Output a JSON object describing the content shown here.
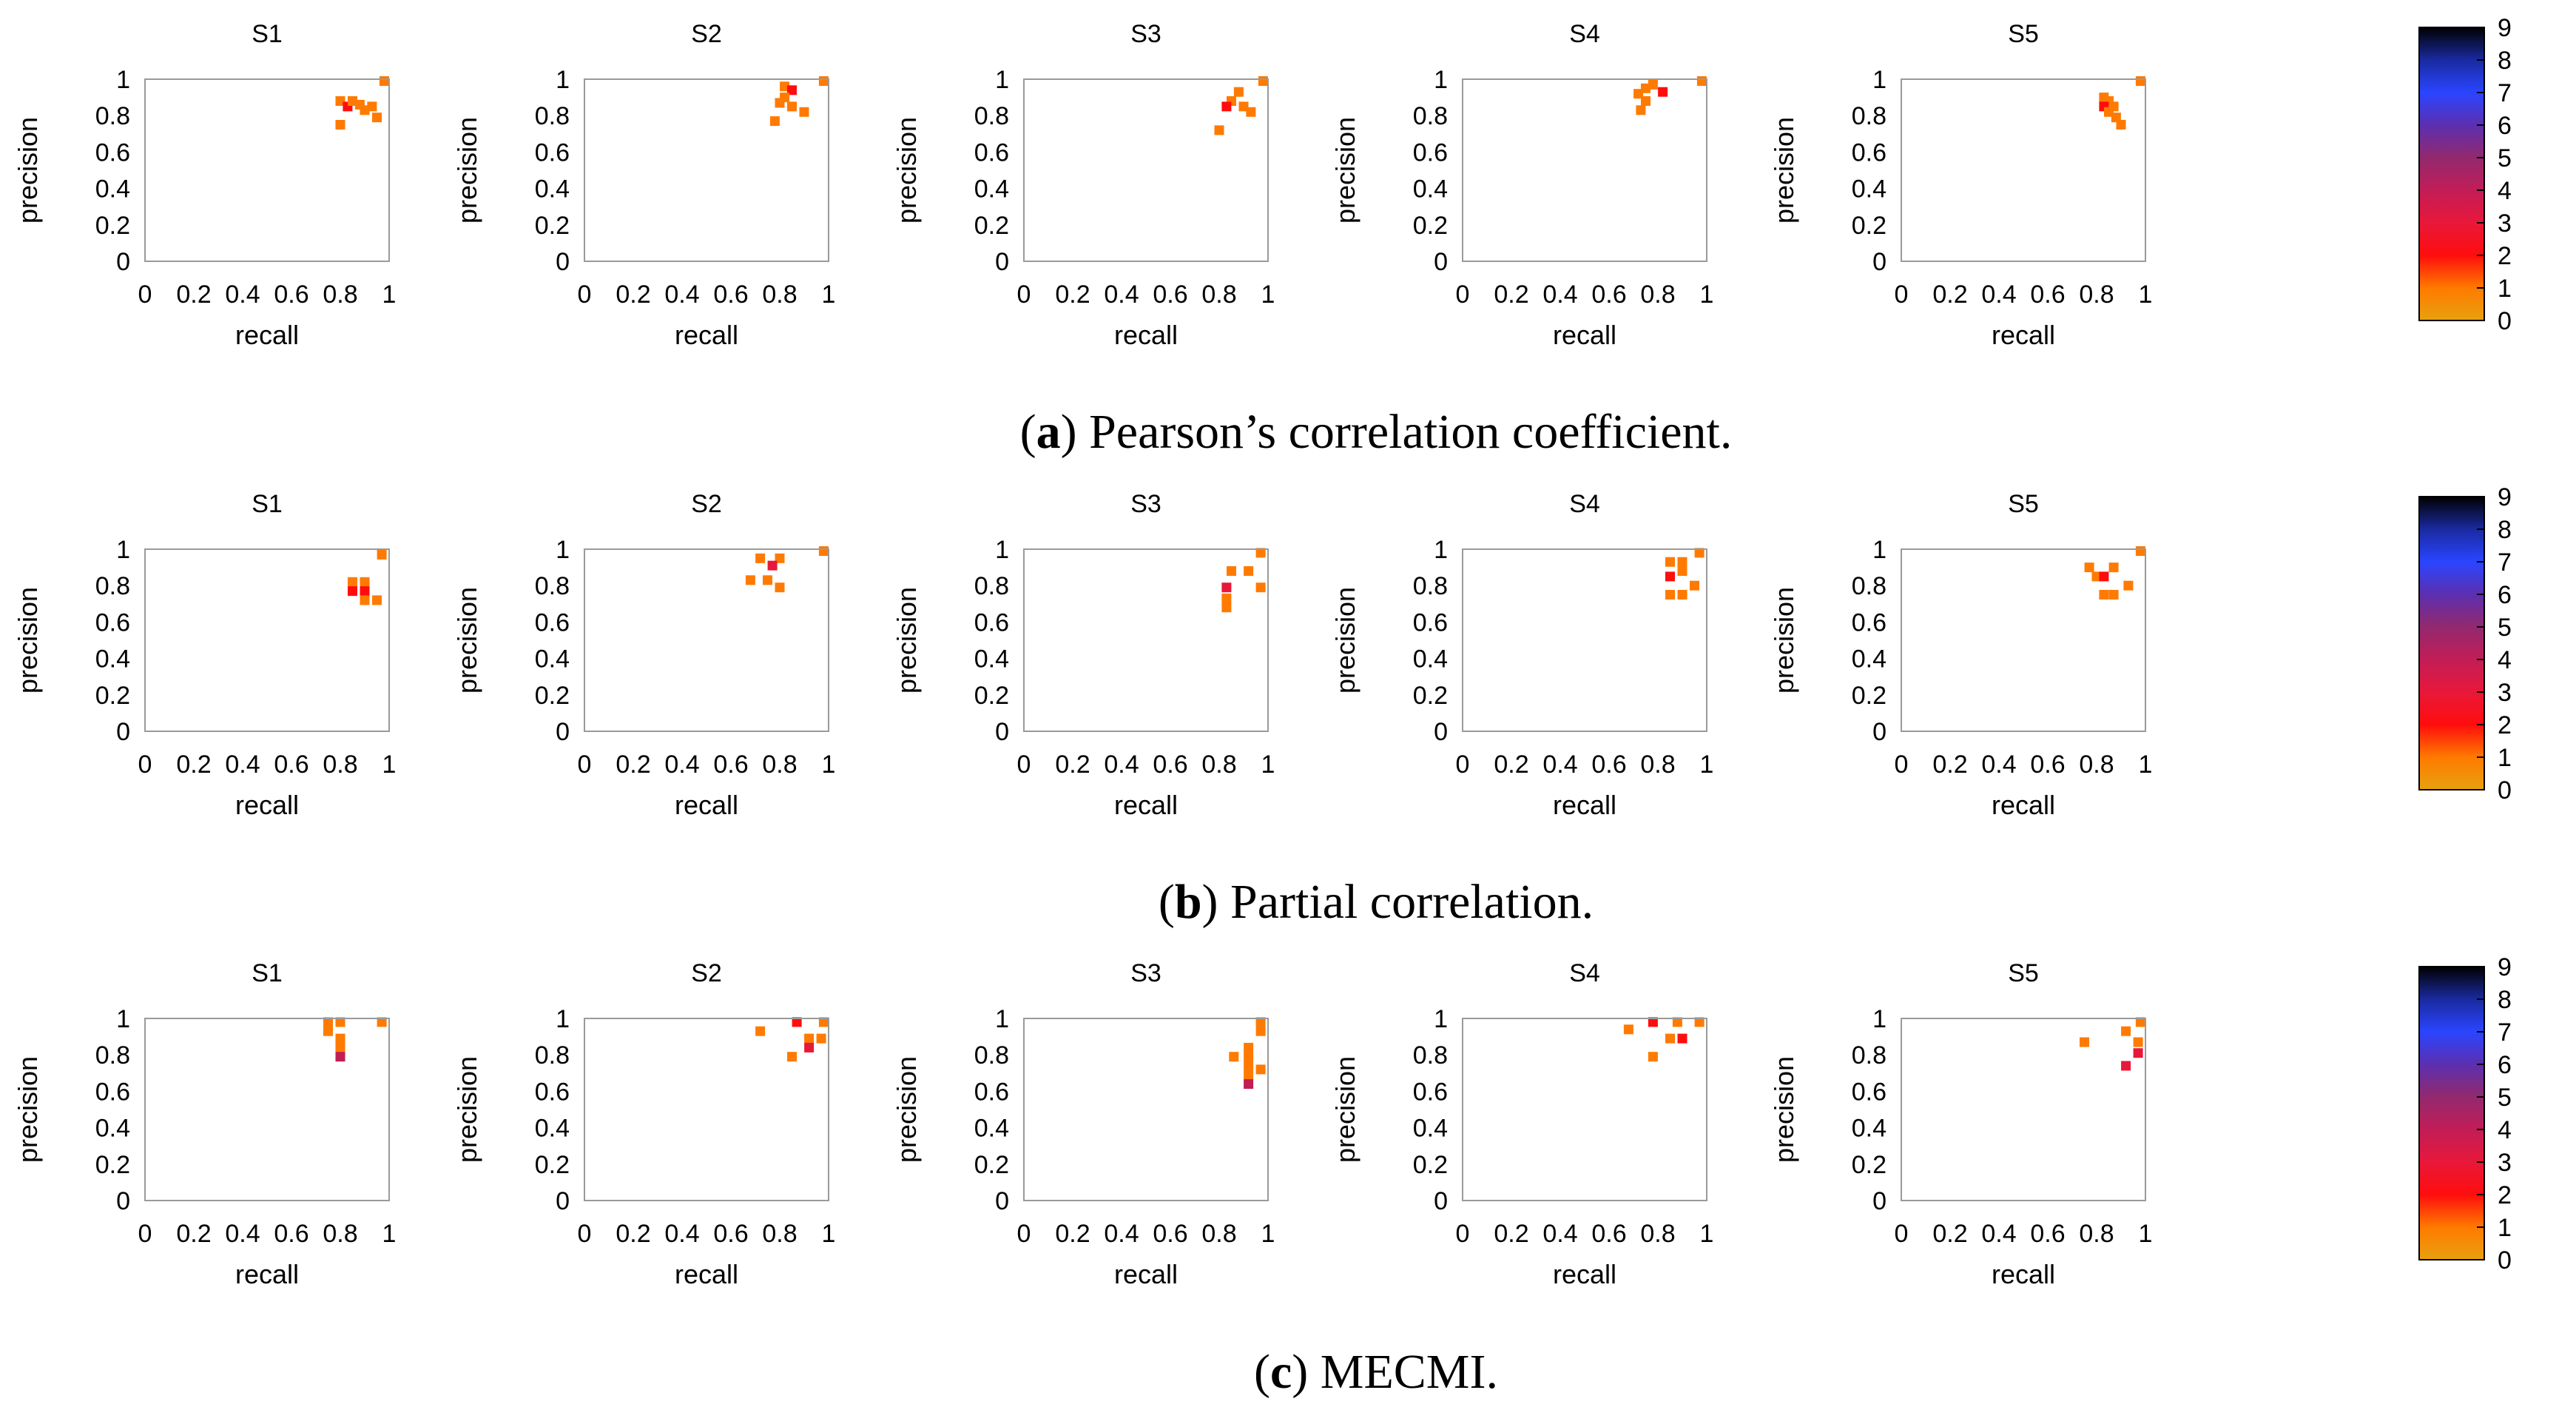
{
  "colormap": {
    "stops": [
      "#e8a10f",
      "#ff7a00",
      "#ff0d0d",
      "#e8183a",
      "#c21d57",
      "#92296e",
      "#5c2fb0",
      "#2a45ff",
      "#1a2aa0",
      "#000000"
    ],
    "ticks": [
      "0",
      "1",
      "2",
      "3",
      "4",
      "5",
      "6",
      "7",
      "8",
      "9"
    ],
    "range": [
      0,
      9
    ]
  },
  "chart_data": [
    {
      "caption_label": "a",
      "caption_text": "Pearson’s correlation coefficient.",
      "panels": [
        {
          "title": "S1",
          "type": "heatmap",
          "xlabel": "recall",
          "ylabel": "precision",
          "xlim": [
            0,
            1
          ],
          "ylim": [
            0,
            1
          ],
          "xticks": [
            "0",
            "0.2",
            "0.4",
            "0.6",
            "0.8",
            "1"
          ],
          "yticks": [
            "0",
            "0.2",
            "0.4",
            "0.6",
            "0.8",
            "1"
          ],
          "cells": [
            [
              0.98,
              0.99,
              1
            ],
            [
              0.8,
              0.88,
              1
            ],
            [
              0.83,
              0.85,
              2
            ],
            [
              0.85,
              0.88,
              1
            ],
            [
              0.88,
              0.86,
              1
            ],
            [
              0.9,
              0.83,
              1
            ],
            [
              0.93,
              0.85,
              1
            ],
            [
              0.8,
              0.75,
              1
            ],
            [
              0.95,
              0.79,
              1
            ]
          ]
        },
        {
          "title": "S2",
          "type": "heatmap",
          "xlabel": "recall",
          "ylabel": "precision",
          "xlim": [
            0,
            1
          ],
          "ylim": [
            0,
            1
          ],
          "xticks": [
            "0",
            "0.2",
            "0.4",
            "0.6",
            "0.8",
            "1"
          ],
          "yticks": [
            "0",
            "0.2",
            "0.4",
            "0.6",
            "0.8",
            "1"
          ],
          "cells": [
            [
              0.98,
              0.99,
              1
            ],
            [
              0.82,
              0.96,
              1
            ],
            [
              0.85,
              0.94,
              2
            ],
            [
              0.82,
              0.9,
              1
            ],
            [
              0.8,
              0.87,
              1
            ],
            [
              0.85,
              0.85,
              1
            ],
            [
              0.9,
              0.82,
              1
            ],
            [
              0.78,
              0.77,
              1
            ]
          ]
        },
        {
          "title": "S3",
          "type": "heatmap",
          "xlabel": "recall",
          "ylabel": "precision",
          "xlim": [
            0,
            1
          ],
          "ylim": [
            0,
            1
          ],
          "xticks": [
            "0",
            "0.2",
            "0.4",
            "0.6",
            "0.8",
            "1"
          ],
          "yticks": [
            "0",
            "0.2",
            "0.4",
            "0.6",
            "0.8",
            "1"
          ],
          "cells": [
            [
              0.98,
              0.99,
              1
            ],
            [
              0.88,
              0.93,
              1
            ],
            [
              0.85,
              0.88,
              1
            ],
            [
              0.83,
              0.85,
              2
            ],
            [
              0.9,
              0.85,
              1
            ],
            [
              0.93,
              0.82,
              1
            ],
            [
              0.8,
              0.72,
              1
            ]
          ]
        },
        {
          "title": "S4",
          "type": "heatmap",
          "xlabel": "recall",
          "ylabel": "precision",
          "xlim": [
            0,
            1
          ],
          "ylim": [
            0,
            1
          ],
          "xticks": [
            "0",
            "0.2",
            "0.4",
            "0.6",
            "0.8",
            "1"
          ],
          "yticks": [
            "0",
            "0.2",
            "0.4",
            "0.6",
            "0.8",
            "1"
          ],
          "cells": [
            [
              0.98,
              0.99,
              1
            ],
            [
              0.78,
              0.97,
              1
            ],
            [
              0.75,
              0.95,
              1
            ],
            [
              0.82,
              0.93,
              2
            ],
            [
              0.72,
              0.92,
              1
            ],
            [
              0.75,
              0.88,
              1
            ],
            [
              0.73,
              0.83,
              1
            ]
          ]
        },
        {
          "title": "S5",
          "type": "heatmap",
          "xlabel": "recall",
          "ylabel": "precision",
          "xlim": [
            0,
            1
          ],
          "ylim": [
            0,
            1
          ],
          "xticks": [
            "0",
            "0.2",
            "0.4",
            "0.6",
            "0.8",
            "1"
          ],
          "yticks": [
            "0",
            "0.2",
            "0.4",
            "0.6",
            "0.8",
            "1"
          ],
          "cells": [
            [
              0.98,
              0.99,
              1
            ],
            [
              0.83,
              0.9,
              1
            ],
            [
              0.85,
              0.88,
              1
            ],
            [
              0.83,
              0.85,
              2
            ],
            [
              0.87,
              0.85,
              1
            ],
            [
              0.85,
              0.82,
              1
            ],
            [
              0.88,
              0.79,
              1
            ],
            [
              0.9,
              0.75,
              1
            ]
          ]
        }
      ]
    },
    {
      "caption_label": "b",
      "caption_text": "Partial correlation.",
      "panels": [
        {
          "title": "S1",
          "type": "heatmap",
          "xlabel": "recall",
          "ylabel": "precision",
          "xlim": [
            0,
            1
          ],
          "ylim": [
            0,
            1
          ],
          "xticks": [
            "0",
            "0.2",
            "0.4",
            "0.6",
            "0.8",
            "1"
          ],
          "yticks": [
            "0",
            "0.2",
            "0.4",
            "0.6",
            "0.8",
            "1"
          ],
          "cells": [
            [
              0.97,
              0.97,
              1
            ],
            [
              0.85,
              0.82,
              1
            ],
            [
              0.9,
              0.82,
              1
            ],
            [
              0.85,
              0.77,
              2
            ],
            [
              0.9,
              0.77,
              2
            ],
            [
              0.9,
              0.72,
              1
            ],
            [
              0.95,
              0.72,
              1
            ]
          ]
        },
        {
          "title": "S2",
          "type": "heatmap",
          "xlabel": "recall",
          "ylabel": "precision",
          "xlim": [
            0,
            1
          ],
          "ylim": [
            0,
            1
          ],
          "xticks": [
            "0",
            "0.2",
            "0.4",
            "0.6",
            "0.8",
            "1"
          ],
          "yticks": [
            "0",
            "0.2",
            "0.4",
            "0.6",
            "0.8",
            "1"
          ],
          "cells": [
            [
              0.98,
              0.99,
              1
            ],
            [
              0.72,
              0.95,
              1
            ],
            [
              0.8,
              0.95,
              1
            ],
            [
              0.77,
              0.91,
              3
            ],
            [
              0.68,
              0.83,
              1
            ],
            [
              0.75,
              0.83,
              1
            ],
            [
              0.8,
              0.79,
              1
            ]
          ]
        },
        {
          "title": "S3",
          "type": "heatmap",
          "xlabel": "recall",
          "ylabel": "precision",
          "xlim": [
            0,
            1
          ],
          "ylim": [
            0,
            1
          ],
          "xticks": [
            "0",
            "0.2",
            "0.4",
            "0.6",
            "0.8",
            "1"
          ],
          "yticks": [
            "0",
            "0.2",
            "0.4",
            "0.6",
            "0.8",
            "1"
          ],
          "cells": [
            [
              0.97,
              0.98,
              1
            ],
            [
              0.85,
              0.88,
              1
            ],
            [
              0.92,
              0.88,
              1
            ],
            [
              0.83,
              0.79,
              3
            ],
            [
              0.97,
              0.79,
              1
            ],
            [
              0.83,
              0.73,
              1
            ],
            [
              0.83,
              0.68,
              1
            ]
          ]
        },
        {
          "title": "S4",
          "type": "heatmap",
          "xlabel": "recall",
          "ylabel": "precision",
          "xlim": [
            0,
            1
          ],
          "ylim": [
            0,
            1
          ],
          "xticks": [
            "0",
            "0.2",
            "0.4",
            "0.6",
            "0.8",
            "1"
          ],
          "yticks": [
            "0",
            "0.2",
            "0.4",
            "0.6",
            "0.8",
            "1"
          ],
          "cells": [
            [
              0.97,
              0.98,
              1
            ],
            [
              0.85,
              0.93,
              1
            ],
            [
              0.9,
              0.93,
              1
            ],
            [
              0.9,
              0.88,
              1
            ],
            [
              0.85,
              0.85,
              2
            ],
            [
              0.95,
              0.8,
              1
            ],
            [
              0.85,
              0.75,
              1
            ],
            [
              0.9,
              0.75,
              1
            ]
          ]
        },
        {
          "title": "S5",
          "type": "heatmap",
          "xlabel": "recall",
          "ylabel": "precision",
          "xlim": [
            0,
            1
          ],
          "ylim": [
            0,
            1
          ],
          "xticks": [
            "0",
            "0.2",
            "0.4",
            "0.6",
            "0.8",
            "1"
          ],
          "yticks": [
            "0",
            "0.2",
            "0.4",
            "0.6",
            "0.8",
            "1"
          ],
          "cells": [
            [
              0.98,
              0.99,
              1
            ],
            [
              0.77,
              0.9,
              1
            ],
            [
              0.87,
              0.9,
              1
            ],
            [
              0.8,
              0.85,
              1
            ],
            [
              0.83,
              0.85,
              2
            ],
            [
              0.93,
              0.8,
              1
            ],
            [
              0.83,
              0.75,
              1
            ],
            [
              0.87,
              0.75,
              1
            ]
          ]
        }
      ]
    },
    {
      "caption_label": "c",
      "caption_text": "MECMI.",
      "panels": [
        {
          "title": "S1",
          "type": "heatmap",
          "xlabel": "recall",
          "ylabel": "precision",
          "xlim": [
            0,
            1
          ],
          "ylim": [
            0,
            1
          ],
          "xticks": [
            "0",
            "0.2",
            "0.4",
            "0.6",
            "0.8",
            "1"
          ],
          "yticks": [
            "0",
            "0.2",
            "0.4",
            "0.6",
            "0.8",
            "1"
          ],
          "cells": [
            [
              0.97,
              0.98,
              1
            ],
            [
              0.75,
              0.98,
              1
            ],
            [
              0.8,
              0.98,
              1
            ],
            [
              0.75,
              0.93,
              1
            ],
            [
              0.8,
              0.89,
              1
            ],
            [
              0.8,
              0.84,
              1
            ],
            [
              0.8,
              0.79,
              4
            ]
          ]
        },
        {
          "title": "S2",
          "type": "heatmap",
          "xlabel": "recall",
          "ylabel": "precision",
          "xlim": [
            0,
            1
          ],
          "ylim": [
            0,
            1
          ],
          "xticks": [
            "0",
            "0.2",
            "0.4",
            "0.6",
            "0.8",
            "1"
          ],
          "yticks": [
            "0",
            "0.2",
            "0.4",
            "0.6",
            "0.8",
            "1"
          ],
          "cells": [
            [
              0.98,
              0.98,
              1
            ],
            [
              0.87,
              0.98,
              2
            ],
            [
              0.72,
              0.93,
              1
            ],
            [
              0.92,
              0.89,
              1
            ],
            [
              0.97,
              0.89,
              1
            ],
            [
              0.92,
              0.84,
              3
            ],
            [
              0.85,
              0.79,
              1
            ]
          ]
        },
        {
          "title": "S3",
          "type": "heatmap",
          "xlabel": "recall",
          "ylabel": "precision",
          "xlim": [
            0,
            1
          ],
          "ylim": [
            0,
            1
          ],
          "xticks": [
            "0",
            "0.2",
            "0.4",
            "0.6",
            "0.8",
            "1"
          ],
          "yticks": [
            "0",
            "0.2",
            "0.4",
            "0.6",
            "0.8",
            "1"
          ],
          "cells": [
            [
              0.97,
              0.98,
              1
            ],
            [
              0.97,
              0.93,
              1
            ],
            [
              0.92,
              0.84,
              1
            ],
            [
              0.86,
              0.79,
              1
            ],
            [
              0.92,
              0.79,
              1
            ],
            [
              0.92,
              0.74,
              1
            ],
            [
              0.97,
              0.72,
              1
            ],
            [
              0.92,
              0.69,
              1
            ],
            [
              0.92,
              0.64,
              4
            ]
          ]
        },
        {
          "title": "S4",
          "type": "heatmap",
          "xlabel": "recall",
          "ylabel": "precision",
          "xlim": [
            0,
            1
          ],
          "ylim": [
            0,
            1
          ],
          "xticks": [
            "0",
            "0.2",
            "0.4",
            "0.6",
            "0.8",
            "1"
          ],
          "yticks": [
            "0",
            "0.2",
            "0.4",
            "0.6",
            "0.8",
            "1"
          ],
          "cells": [
            [
              0.97,
              0.98,
              1
            ],
            [
              0.78,
              0.98,
              2
            ],
            [
              0.88,
              0.98,
              1
            ],
            [
              0.68,
              0.94,
              1
            ],
            [
              0.85,
              0.89,
              1
            ],
            [
              0.9,
              0.89,
              2
            ],
            [
              0.78,
              0.79,
              1
            ]
          ]
        },
        {
          "title": "S5",
          "type": "heatmap",
          "xlabel": "recall",
          "ylabel": "precision",
          "xlim": [
            0,
            1
          ],
          "ylim": [
            0,
            1
          ],
          "xticks": [
            "0",
            "0.2",
            "0.4",
            "0.6",
            "0.8",
            "1"
          ],
          "yticks": [
            "0",
            "0.2",
            "0.4",
            "0.6",
            "0.8",
            "1"
          ],
          "cells": [
            [
              0.98,
              0.98,
              1
            ],
            [
              0.92,
              0.93,
              1
            ],
            [
              0.75,
              0.87,
              1
            ],
            [
              0.97,
              0.87,
              1
            ],
            [
              0.97,
              0.81,
              3
            ],
            [
              0.92,
              0.74,
              3
            ]
          ]
        }
      ]
    }
  ]
}
